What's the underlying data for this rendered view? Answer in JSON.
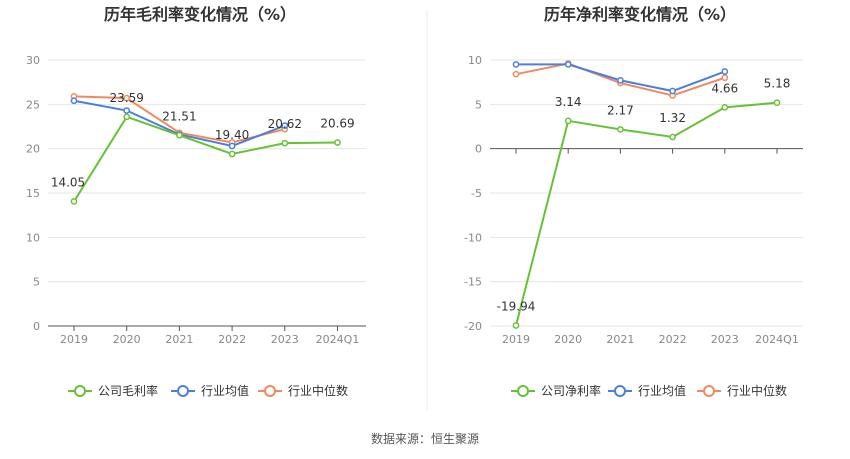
{
  "source_note": "数据来源：恒生聚源",
  "colors": {
    "company": "#66c234",
    "avg": "#4a7fe0",
    "median": "#f08a5d",
    "grid": "#e5e5e5",
    "axis": "#555555"
  },
  "chart_data": [
    {
      "type": "line",
      "title": "历年毛利率变化情况（%）",
      "categories": [
        "2019",
        "2020",
        "2021",
        "2022",
        "2023",
        "2024Q1"
      ],
      "ylim": [
        0,
        30
      ],
      "yticks": [
        0,
        5,
        10,
        15,
        20,
        25,
        30
      ],
      "grid": true,
      "legend_position": "bottom",
      "series": [
        {
          "key": "company",
          "name": "公司毛利率",
          "values": [
            14.05,
            23.59,
            21.51,
            19.4,
            20.62,
            20.69
          ],
          "labels": [
            "14.05",
            "23.59",
            "21.51",
            "19.40",
            "20.62",
            "20.69"
          ]
        },
        {
          "key": "avg",
          "name": "行业均值",
          "values": [
            25.4,
            24.3,
            21.6,
            20.3,
            22.6,
            null
          ]
        },
        {
          "key": "median",
          "name": "行业中位数",
          "values": [
            25.9,
            25.7,
            21.8,
            20.7,
            22.2,
            null
          ]
        }
      ]
    },
    {
      "type": "line",
      "title": "历年净利率变化情况（%）",
      "categories": [
        "2019",
        "2020",
        "2021",
        "2022",
        "2023",
        "2024Q1"
      ],
      "ylim": [
        -20,
        10
      ],
      "yticks": [
        -20,
        -15,
        -10,
        -5,
        0,
        5,
        10
      ],
      "grid": true,
      "legend_position": "bottom",
      "series": [
        {
          "key": "company",
          "name": "公司净利率",
          "values": [
            -19.94,
            3.14,
            2.17,
            1.32,
            4.66,
            5.18
          ],
          "labels": [
            "-19.94",
            "3.14",
            "2.17",
            "1.32",
            "4.66",
            "5.18"
          ]
        },
        {
          "key": "avg",
          "name": "行业均值",
          "values": [
            9.5,
            9.5,
            7.7,
            6.5,
            8.7,
            null
          ]
        },
        {
          "key": "median",
          "name": "行业中位数",
          "values": [
            8.4,
            9.6,
            7.4,
            6.0,
            8.0,
            null
          ]
        }
      ]
    }
  ]
}
